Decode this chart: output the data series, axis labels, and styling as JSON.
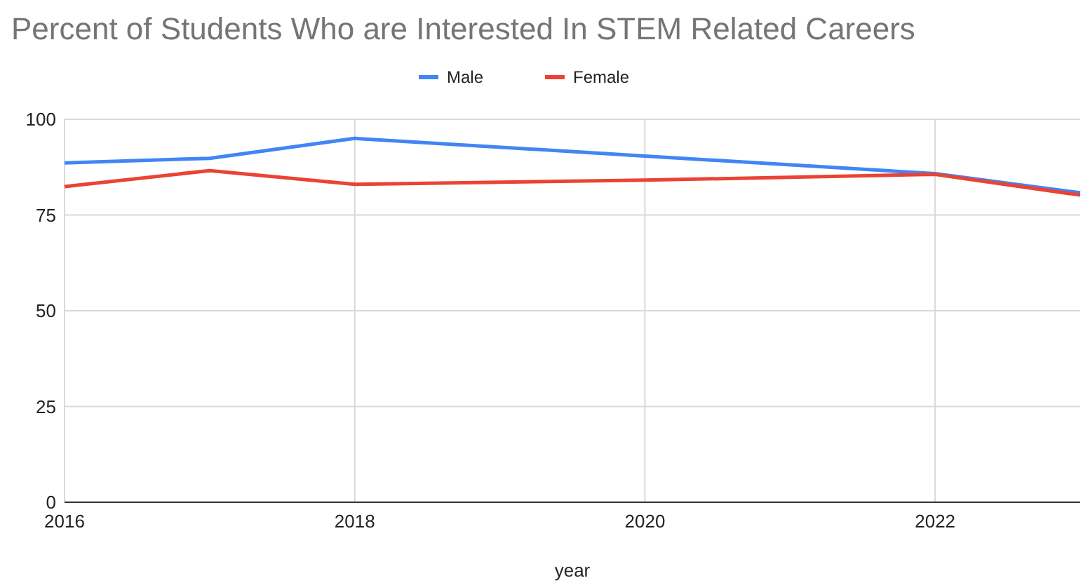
{
  "chart_data": {
    "type": "line",
    "title": "Percent of Students Who are Interested In STEM Related Careers",
    "xlabel": "year",
    "x": [
      2016,
      2017,
      2018,
      2020,
      2022,
      2023
    ],
    "series": [
      {
        "name": "Male",
        "color": "#4285f4",
        "values": [
          88.6,
          89.8,
          95,
          90.4,
          85.8,
          80.8
        ]
      },
      {
        "name": "Female",
        "color": "#ea4335",
        "values": [
          82.4,
          86.6,
          83,
          84.1,
          85.6,
          80.2
        ]
      }
    ],
    "xlim": [
      2016,
      2023
    ],
    "xticks": [
      2016,
      2018,
      2020,
      2022
    ],
    "ylim": [
      0,
      100
    ],
    "yticks": [
      0,
      25,
      50,
      75,
      100
    ],
    "grid": true,
    "legend": "top",
    "marker": "none"
  }
}
